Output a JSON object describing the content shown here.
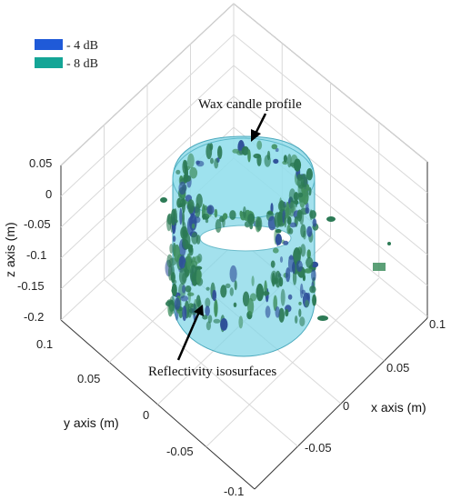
{
  "chart_data": {
    "type": "isosurface-3d",
    "legend": {
      "placement": "top-left",
      "entries": [
        {
          "label": "- 4 dB",
          "color": "#1f5ad8"
        },
        {
          "label": "- 8 dB",
          "color": "#14a596"
        }
      ]
    },
    "axes": {
      "x": {
        "label": "x axis (m)",
        "ticks": [
          "-0.1",
          "-0.05",
          "0",
          "0.05",
          "0.1"
        ],
        "range": [
          -0.1,
          0.1
        ]
      },
      "y": {
        "label": "y axis (m)",
        "ticks": [
          "-0.1",
          "-0.05",
          "0",
          "0.05",
          "0.1"
        ],
        "range": [
          -0.1,
          0.1
        ]
      },
      "z": {
        "label": "z axis (m)",
        "ticks": [
          "0.05",
          "0",
          "-0.05",
          "-0.1",
          "-0.15",
          "-0.2"
        ],
        "range": [
          -0.2,
          0.05
        ]
      }
    },
    "grid": true,
    "annotations": [
      {
        "text": "Wax candle profile"
      },
      {
        "text": "Reflectivity isosurfaces"
      }
    ],
    "surface_colors": {
      "candle": "#7fd6e6",
      "candle_edge": "#4aa9bd",
      "iso_dark": "#2c7a55",
      "iso_mid": "#3f8f5f",
      "iso_blue": "#2e4f99"
    }
  }
}
